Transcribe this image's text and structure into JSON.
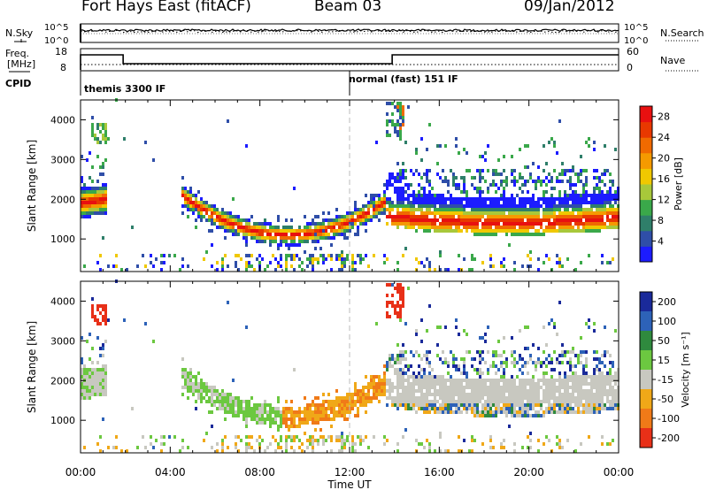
{
  "header": {
    "title": "Fort Hays East (fitACF)",
    "beam": "Beam 03",
    "date": "09/Jan/2012"
  },
  "noise_panel": {
    "left_label": "N.Sky",
    "right_label": "N.Search",
    "left_ticks": [
      "10^5",
      "10^0"
    ],
    "right_ticks": [
      "10^5",
      "10^0"
    ]
  },
  "freq_panel": {
    "left_label_line1": "Freq.",
    "left_label_line2": "[MHz]",
    "right_label": "Nave",
    "left_ticks": [
      "18",
      "8"
    ],
    "right_ticks": [
      "60",
      "0"
    ]
  },
  "cpid": {
    "label": "CPID",
    "segments": [
      {
        "text": "themis 3300 IF",
        "start_ut": 0
      },
      {
        "text": "normal (fast) 151 IF",
        "start_ut": 12
      }
    ]
  },
  "chart_data": [
    {
      "type": "heatmap",
      "title": "",
      "quantity": "Power",
      "ylabel": "Slant Range [km]",
      "xlabel": "Time UT",
      "ylim": [
        180,
        4500
      ],
      "xlim": [
        0,
        24
      ],
      "y_ticks": [
        "1000",
        "2000",
        "3000",
        "4000"
      ],
      "colorbar_label": "Power [dB]",
      "colorbar_ticks": [
        "4",
        "8",
        "12",
        "16",
        "20",
        "24",
        "28"
      ],
      "colorbar_range": [
        0,
        30
      ],
      "colors": [
        "#1c1cff",
        "#2f4ea8",
        "#2f7f6a",
        "#3aa84a",
        "#a8c83a",
        "#f0c800",
        "#f59a00",
        "#f06a00",
        "#e83800",
        "#e81010"
      ]
    },
    {
      "type": "heatmap",
      "title": "",
      "quantity": "Velocity",
      "ylabel": "Slant Range [km]",
      "xlabel": "Time UT",
      "ylim": [
        180,
        4500
      ],
      "xlim": [
        0,
        24
      ],
      "y_ticks": [
        "1000",
        "2000",
        "3000",
        "4000"
      ],
      "colorbar_label": "Velocity [m s⁻¹]",
      "colorbar_ticks": [
        "200",
        "100",
        "50",
        "15",
        "-15",
        "-50",
        "-100",
        "-200"
      ],
      "colors": [
        "#1a2a9a",
        "#2d62b8",
        "#2f8a3e",
        "#6cc840",
        "#c8c8c0",
        "#f0a818",
        "#f07a18",
        "#e83018"
      ]
    }
  ],
  "x_axis": {
    "label": "Time UT",
    "ticks": [
      "00:00",
      "04:00",
      "08:00",
      "12:00",
      "16:00",
      "20:00",
      "00:00"
    ]
  }
}
